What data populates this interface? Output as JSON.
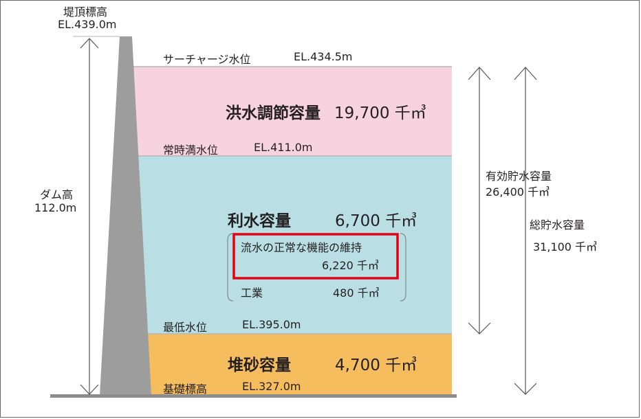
{
  "crest": {
    "label": "堤頂標高",
    "elevation": "EL.439.0m"
  },
  "dam_height": {
    "label": "ダム高",
    "value": "112.0m"
  },
  "levels": {
    "surcharge": {
      "label": "サーチャージ水位",
      "elevation": "EL.434.5m"
    },
    "normal_full": {
      "label": "常時満水位",
      "elevation": "EL.411.0m"
    },
    "minimum": {
      "label": "最低水位",
      "elevation": "EL.395.0m"
    },
    "foundation": {
      "label": "基礎標高",
      "elevation": "EL.327.0m"
    }
  },
  "zones": {
    "flood": {
      "label": "洪水調節容量",
      "value": "19,700 千㎥",
      "color": "#f7d3df"
    },
    "water_use": {
      "label": "利水容量",
      "value": "6,700 千㎥",
      "color": "#b9dfe4"
    },
    "sediment": {
      "label": "堆砂容量",
      "value": "4,700 千㎥",
      "color": "#f6bd5e"
    }
  },
  "breakdown": {
    "maintenance": {
      "label": "流水の正常な機能の維持",
      "value": "6,220 千㎥"
    },
    "industry": {
      "label": "工業",
      "value": "480 千㎥"
    }
  },
  "effective_storage": {
    "label": "有効貯水容量",
    "value": "26,400 千㎥"
  },
  "total_storage": {
    "label": "総貯水容量",
    "value": "31,100 千㎥"
  },
  "colors": {
    "dam": "#9d9d9d",
    "ground": "#8c8c8c",
    "highlight": "#e50012",
    "arrow": "#555555"
  }
}
